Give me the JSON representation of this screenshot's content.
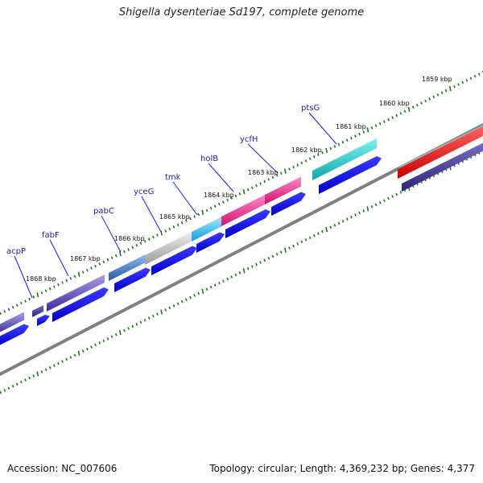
{
  "title": "Shigella dysenteriae Sd197, complete genome",
  "footer": {
    "accession": "Accession: NC_007606",
    "topology": "Topology: circular; Length: 4,369,232 bp; Genes: 4,377"
  },
  "genes": [
    {
      "name": "acpP"
    },
    {
      "name": "fabF"
    },
    {
      "name": "pabC"
    },
    {
      "name": "yceG"
    },
    {
      "name": "tmk"
    },
    {
      "name": "holB"
    },
    {
      "name": "ycfH"
    },
    {
      "name": "ptsG"
    }
  ],
  "scale_ticks": [
    "1859 kbp",
    "1860 kbp",
    "1861 kbp",
    "1862 kbp",
    "1863 kbp",
    "1864 kbp",
    "1865 kbp",
    "1866 kbp",
    "1867 kbp",
    "1868 kbp"
  ],
  "colors": {
    "backbone": "#808080",
    "cds_blue": "#0000ee",
    "tick_green": "#1a7a1a",
    "label_blue": "#1a1aaa",
    "red_feature": "#ee0000",
    "navy_feature": "#3a3a90",
    "cyan_feature": "#22c0c0",
    "pink_feature": "#e8208a",
    "lightblue_feature": "#22b8e8",
    "gray_feature": "#b0b0b0",
    "purple_feature": "#5a4ab0"
  }
}
